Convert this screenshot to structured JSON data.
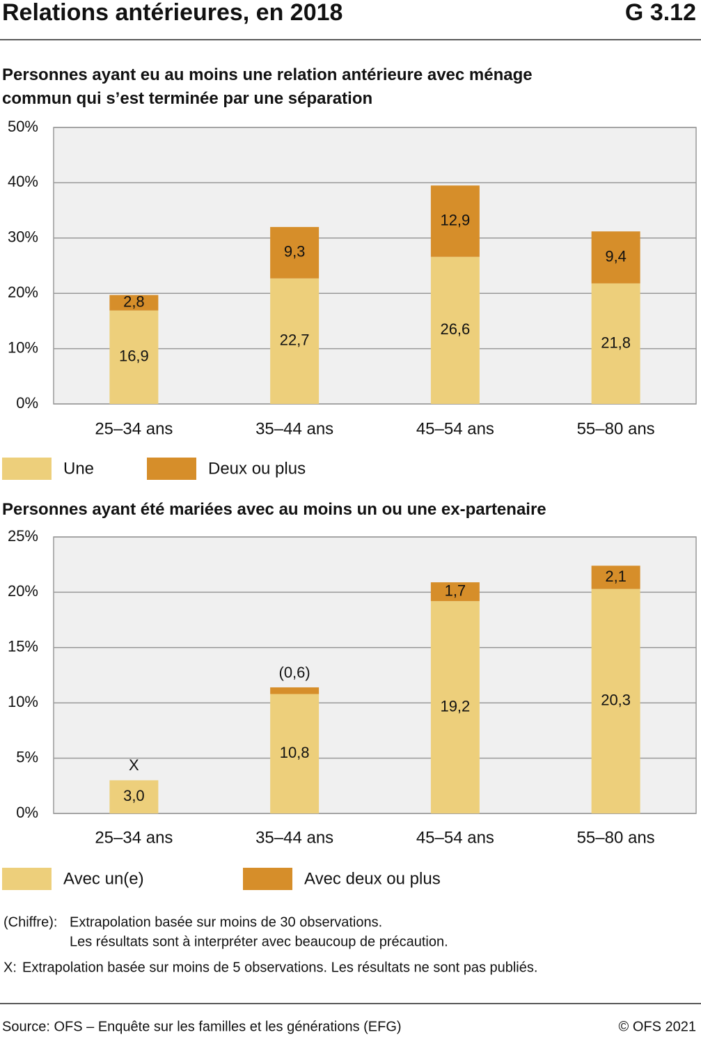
{
  "header": {
    "title": "Relations antérieures, en 2018",
    "code": "G 3.12"
  },
  "chart_data": [
    {
      "type": "bar",
      "stacked": true,
      "title": "Personnes ayant eu au moins une relation antérieure avec ménage commun qui s’est terminée par une séparation",
      "categories": [
        "25–34 ans",
        "35–44 ans",
        "45–54 ans",
        "55–80 ans"
      ],
      "series": [
        {
          "name": "Une",
          "color": "#edcf7b",
          "values": [
            16.9,
            22.7,
            26.6,
            21.8
          ],
          "value_labels": [
            "16,9",
            "22,7",
            "26,6",
            "21,8"
          ]
        },
        {
          "name": "Deux ou plus",
          "color": "#d68e2a",
          "values": [
            2.8,
            9.3,
            12.9,
            9.4
          ],
          "value_labels": [
            "2,8",
            "9,3",
            "12,9",
            "9,4"
          ]
        }
      ],
      "ylim": [
        0,
        50
      ],
      "yticks": [
        {
          "value": 0,
          "label": "0%"
        },
        {
          "value": 10,
          "label": "10%"
        },
        {
          "value": 20,
          "label": "20%"
        },
        {
          "value": 30,
          "label": "30%"
        },
        {
          "value": 40,
          "label": "40%"
        },
        {
          "value": 50,
          "label": "50%"
        }
      ],
      "grid": true
    },
    {
      "type": "bar",
      "stacked": true,
      "title": "Personnes ayant été mariées avec au moins un ou une ex-partenaire",
      "categories": [
        "25–34 ans",
        "35–44 ans",
        "45–54 ans",
        "55–80 ans"
      ],
      "series": [
        {
          "name": "Avec un(e)",
          "color": "#edcf7b",
          "values": [
            3.0,
            10.8,
            19.2,
            20.3
          ],
          "value_labels": [
            "3,0",
            "10,8",
            "19,2",
            "20,3"
          ]
        },
        {
          "name": "Avec deux ou plus",
          "color": "#d68e2a",
          "values": [
            null,
            0.6,
            1.7,
            2.1
          ],
          "value_labels": [
            "X",
            "(0,6)",
            "1,7",
            "2,1"
          ]
        }
      ],
      "ylim": [
        0,
        25
      ],
      "yticks": [
        {
          "value": 0,
          "label": "0%"
        },
        {
          "value": 5,
          "label": "5%"
        },
        {
          "value": 10,
          "label": "10%"
        },
        {
          "value": 15,
          "label": "15%"
        },
        {
          "value": 20,
          "label": "20%"
        },
        {
          "value": 25,
          "label": "25%"
        }
      ],
      "grid": true
    }
  ],
  "notes": [
    {
      "key": "(Chiffre):",
      "lines": [
        "Extrapolation basée sur moins de 30 observations.",
        "Les résultats sont à interpréter avec beaucoup de précaution."
      ]
    },
    {
      "key": "X:",
      "lines": [
        "Extrapolation basée sur moins de 5 observations. Les résultats ne sont pas publiés."
      ]
    }
  ],
  "footer": {
    "source": "Source: OFS – Enquête sur les familles et les générations (EFG)",
    "copyright": "© OFS 2021"
  }
}
